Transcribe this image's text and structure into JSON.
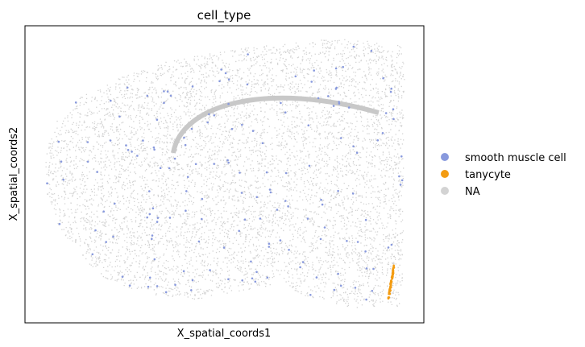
{
  "chart_data": {
    "type": "scatter",
    "title": "cell_type",
    "xlabel": "X_spatial_coords1",
    "ylabel": "X_spatial_coords2",
    "grid": false,
    "ticks_shown": false,
    "legend_placement": "right",
    "legend": [
      {
        "name": "smooth muscle cell",
        "color": "#8899dd"
      },
      {
        "name": "tanycyte",
        "color": "#f39c12"
      },
      {
        "name": "NA",
        "color": "#d3d3d3"
      }
    ],
    "series": [
      {
        "name": "NA",
        "color": "#d3d3d3",
        "description_count": "dense"
      },
      {
        "name": "smooth muscle cell",
        "color": "#8899dd"
      },
      {
        "name": "tanycyte",
        "color": "#f39c12"
      }
    ]
  }
}
